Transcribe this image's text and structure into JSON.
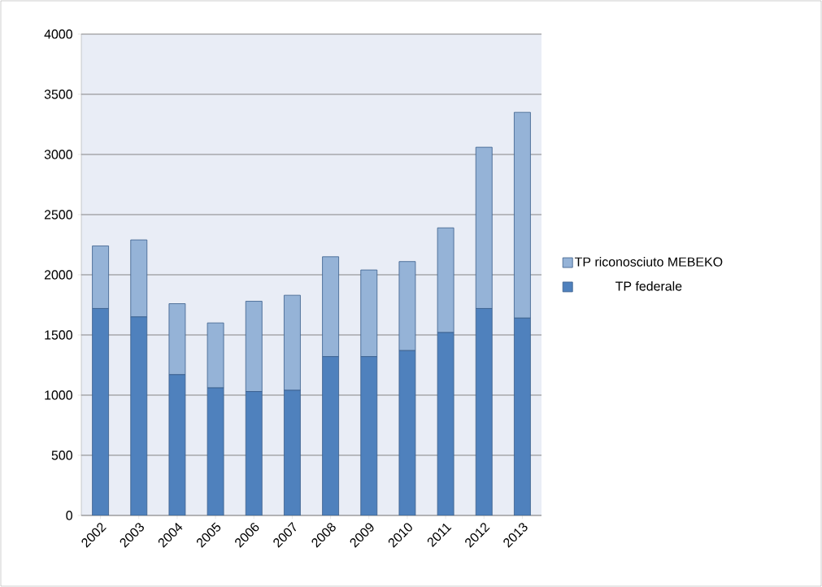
{
  "chart_data": {
    "type": "bar",
    "stacked": true,
    "categories": [
      "2002",
      "2003",
      "2004",
      "2005",
      "2006",
      "2007",
      "2008",
      "2009",
      "2010",
      "2011",
      "2012",
      "2013"
    ],
    "series": [
      {
        "name": "TP federale",
        "color": "#4f81bd",
        "values": [
          1720,
          1650,
          1170,
          1060,
          1030,
          1040,
          1320,
          1320,
          1370,
          1520,
          1720,
          1640
        ]
      },
      {
        "name": "TP riconosciuto MEBEKO",
        "color": "#95b3d7",
        "values": [
          520,
          640,
          590,
          540,
          750,
          790,
          830,
          720,
          740,
          870,
          1340,
          1710
        ]
      }
    ],
    "ylim": [
      0,
      4000
    ],
    "yticks": [
      0,
      500,
      1000,
      1500,
      2000,
      2500,
      3000,
      3500,
      4000
    ],
    "grid": "y",
    "legend": "right"
  }
}
